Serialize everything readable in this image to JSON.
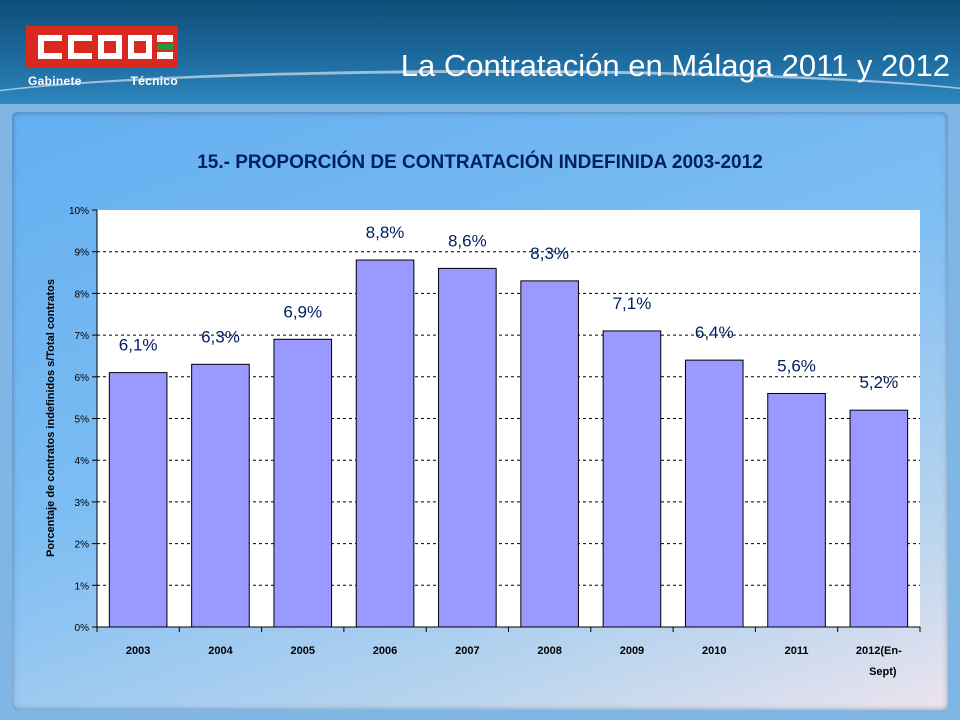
{
  "header": {
    "title": "La Contratación en Málaga 2011 y 2012",
    "logo_text": "CCOO",
    "logo_sub_left": "Gabinete",
    "logo_sub_right": "Técnico"
  },
  "colors": {
    "bar": "#9999ff",
    "title": "#002060",
    "logo_red": "#d9281e"
  },
  "chart_data": {
    "type": "bar",
    "title": "15.- PROPORCIÓN DE CONTRATACIÓN INDEFINIDA 2003-2012",
    "xlabel": "",
    "ylabel": "Porcentaje de contratos indefinidos s/Total contratos",
    "categories": [
      "2003",
      "2004",
      "2005",
      "2006",
      "2007",
      "2008",
      "2009",
      "2010",
      "2011",
      "2012(En-Sept)"
    ],
    "values": [
      6.1,
      6.3,
      6.9,
      8.8,
      8.6,
      8.3,
      7.1,
      6.4,
      5.6,
      5.2
    ],
    "data_labels": [
      "6,1%",
      "6,3%",
      "6,9%",
      "8,8%",
      "8,6%",
      "8,3%",
      "7,1%",
      "6,4%",
      "5,6%",
      "5,2%"
    ],
    "yticks": [
      "0%",
      "1%",
      "2%",
      "3%",
      "4%",
      "5%",
      "6%",
      "7%",
      "8%",
      "9%",
      "10%"
    ],
    "ylim": [
      0,
      10
    ],
    "grid": true,
    "legend": "none"
  }
}
